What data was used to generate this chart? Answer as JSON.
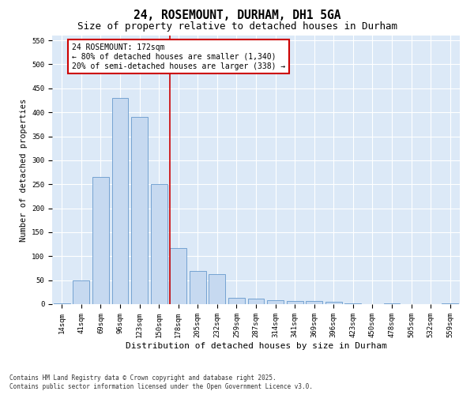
{
  "title": "24, ROSEMOUNT, DURHAM, DH1 5GA",
  "subtitle": "Size of property relative to detached houses in Durham",
  "xlabel": "Distribution of detached houses by size in Durham",
  "ylabel": "Number of detached properties",
  "categories": [
    "14sqm",
    "41sqm",
    "69sqm",
    "96sqm",
    "123sqm",
    "150sqm",
    "178sqm",
    "205sqm",
    "232sqm",
    "259sqm",
    "287sqm",
    "314sqm",
    "341sqm",
    "369sqm",
    "396sqm",
    "423sqm",
    "450sqm",
    "478sqm",
    "505sqm",
    "532sqm",
    "559sqm"
  ],
  "values": [
    2,
    50,
    265,
    430,
    390,
    250,
    117,
    70,
    63,
    13,
    12,
    9,
    7,
    7,
    5,
    1,
    0,
    1,
    0,
    0,
    1
  ],
  "bar_color": "#c6d9f0",
  "bar_edge_color": "#6699cc",
  "vline_color": "#cc0000",
  "vline_x_index": 6,
  "annotation_text": "24 ROSEMOUNT: 172sqm\n← 80% of detached houses are smaller (1,340)\n20% of semi-detached houses are larger (338) →",
  "annotation_box_color": "#ffffff",
  "annotation_box_edge": "#cc0000",
  "ylim": [
    0,
    560
  ],
  "yticks": [
    0,
    50,
    100,
    150,
    200,
    250,
    300,
    350,
    400,
    450,
    500,
    550
  ],
  "background_color": "#dce9f7",
  "footer_line1": "Contains HM Land Registry data © Crown copyright and database right 2025.",
  "footer_line2": "Contains public sector information licensed under the Open Government Licence v3.0.",
  "title_fontsize": 10.5,
  "subtitle_fontsize": 9,
  "xlabel_fontsize": 8,
  "ylabel_fontsize": 7.5,
  "tick_fontsize": 6.5,
  "annotation_fontsize": 7,
  "footer_fontsize": 5.5
}
